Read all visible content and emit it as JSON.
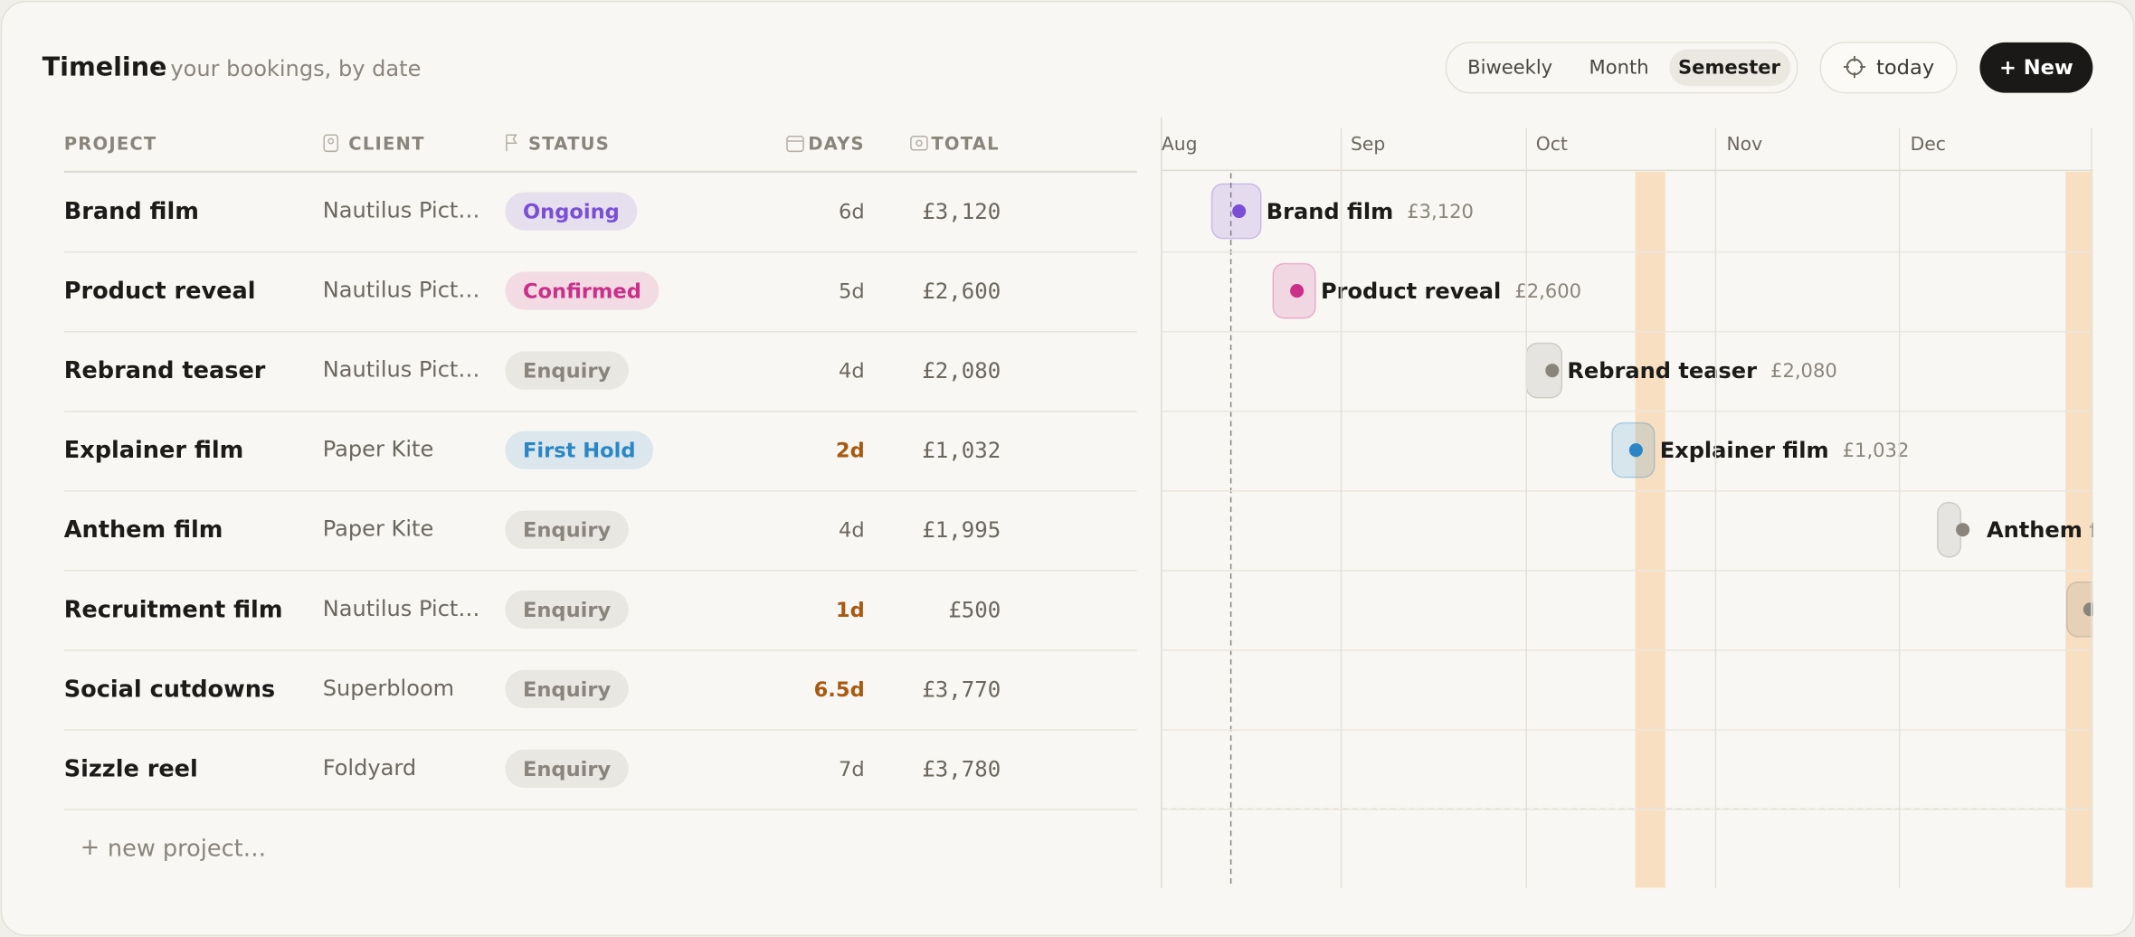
{
  "header": {
    "title": "Timeline",
    "subtitle": "· your bookings, by date"
  },
  "views": [
    "Biweekly",
    "Month",
    "Semester"
  ],
  "today": "today",
  "new_button": "+ New",
  "table": {
    "columns": [
      "PROJECT",
      "CLIENT",
      "STATUS",
      "DAYS",
      "TOTAL"
    ],
    "rows": [
      {
        "project": "Brand film",
        "client": "Nautilus Pict…",
        "status": "Ongoing",
        "color": "#7a4fd6",
        "days": "6d",
        "total": "£3,120"
      },
      {
        "project": "Product reveal",
        "client": "Nautilus Pict…",
        "status": "Confirmed",
        "color": "#cc2f8a",
        "days": "5d",
        "total": "£2,600"
      },
      {
        "project": "Rebrand teaser",
        "client": "Nautilus Pict…",
        "status": "Enquiry",
        "color": "#8a857c",
        "days": "4d",
        "total": "£2,080"
      },
      {
        "project": "Explainer film",
        "client": "Paper Kite",
        "status": "First Hold",
        "color": "#2a86c4",
        "days": "2d",
        "total": "£1,032"
      },
      {
        "project": "Anthem film",
        "client": "Paper Kite",
        "status": "Enquiry",
        "color": "#8a857c",
        "days": "4d",
        "total": "£1,995"
      },
      {
        "project": "Recruitment film",
        "client": "Nautilus Pict…",
        "status": "Enquiry",
        "color": "#8a857c",
        "days": "1d",
        "total": "£500"
      },
      {
        "project": "Social cutdowns",
        "client": "Superbloom",
        "status": "Enquiry",
        "color": "#8a857c",
        "days": "6.5d",
        "total": "£3,770"
      },
      {
        "project": "Sizzle reel",
        "client": "Foldyard",
        "status": "Enquiry",
        "color": "#8a857c",
        "days": "7d",
        "total": "£3,780"
      }
    ]
  },
  "new_project": "new project…",
  "timeline": {
    "months": [
      "Aug",
      "Sep",
      "Oct",
      "Nov",
      "Dec"
    ]
  }
}
